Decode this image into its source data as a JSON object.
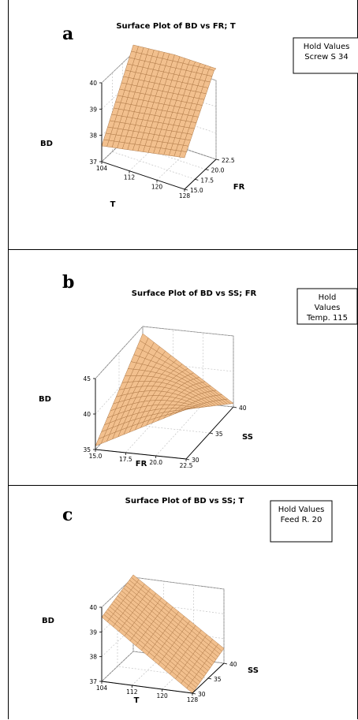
{
  "chart_data": [
    {
      "type": "surface",
      "panel_letter": "a",
      "title": "Surface Plot of BD vs  FR; T",
      "zlabel": "BD",
      "xlabel": "T",
      "ylabel": "FR",
      "hold_values": {
        "title": "Hold Values",
        "lines": [
          "Screw S   34"
        ]
      },
      "x_ticks": [
        "104",
        "112",
        "120",
        "128"
      ],
      "y_ticks": [
        "15.0",
        "17.5",
        "20.0",
        "22.5"
      ],
      "z_ticks": [
        "37",
        "38",
        "39",
        "40"
      ],
      "x_range": [
        104,
        128
      ],
      "y_range": [
        15,
        22.5
      ],
      "z_range": [
        37,
        40
      ],
      "surface": {
        "form": "planar",
        "corners": [
          {
            "T": 104,
            "FR": 15.0,
            "BD": 37.6
          },
          {
            "T": 128,
            "FR": 15.0,
            "BD": 38.2
          },
          {
            "T": 104,
            "FR": 22.5,
            "BD": 40.3
          },
          {
            "T": 128,
            "FR": 22.5,
            "BD": 40.6
          }
        ]
      },
      "surface_color": "#f2c08e",
      "mesh_color": "#b07a48"
    },
    {
      "type": "surface",
      "panel_letter": "b",
      "title": "Surface Plot of BD vs SS; FR",
      "zlabel": "BD",
      "xlabel": "FR",
      "ylabel": "SS",
      "hold_values": {
        "title": "Hold",
        "lines": [
          "Values",
          "Temp.   115"
        ]
      },
      "x_ticks": [
        "15.0",
        "17.5",
        "20.0",
        "22.5"
      ],
      "y_ticks": [
        "30",
        "35",
        "40"
      ],
      "z_ticks": [
        "35",
        "40",
        "45"
      ],
      "x_range": [
        15,
        22.5
      ],
      "y_range": [
        30,
        40
      ],
      "z_range": [
        35,
        45
      ],
      "surface": {
        "form": "saddle",
        "corners": [
          {
            "FR": 15.0,
            "SS": 30,
            "BD": 35.5
          },
          {
            "FR": 22.5,
            "SS": 30,
            "BD": 42.0
          },
          {
            "FR": 15.0,
            "SS": 40,
            "BD": 44.0
          },
          {
            "FR": 22.5,
            "SS": 40,
            "BD": 35.5
          }
        ]
      },
      "surface_color": "#f2c08e",
      "mesh_color": "#b07a48"
    },
    {
      "type": "surface",
      "panel_letter": "c",
      "title": "Surface Plot of BD vs SS; T",
      "zlabel": "BD",
      "xlabel": "T",
      "ylabel": "SS",
      "hold_values": {
        "title": "Hold Values",
        "lines": [
          "Feed R.   20"
        ]
      },
      "x_ticks": [
        "104",
        "112",
        "120",
        "128"
      ],
      "y_ticks": [
        "30",
        "35",
        "40"
      ],
      "z_ticks": [
        "37",
        "38",
        "39",
        "40"
      ],
      "x_range": [
        104,
        128
      ],
      "y_range": [
        30,
        40
      ],
      "z_range": [
        37,
        40
      ],
      "surface": {
        "form": "planar",
        "corners": [
          {
            "T": 104,
            "SS": 30,
            "BD": 39.6
          },
          {
            "T": 128,
            "SS": 30,
            "BD": 37.0
          },
          {
            "T": 104,
            "SS": 40,
            "BD": 40.1
          },
          {
            "T": 128,
            "SS": 40,
            "BD": 37.6
          }
        ]
      },
      "surface_color": "#f2c08e",
      "mesh_color": "#b07a48"
    }
  ]
}
